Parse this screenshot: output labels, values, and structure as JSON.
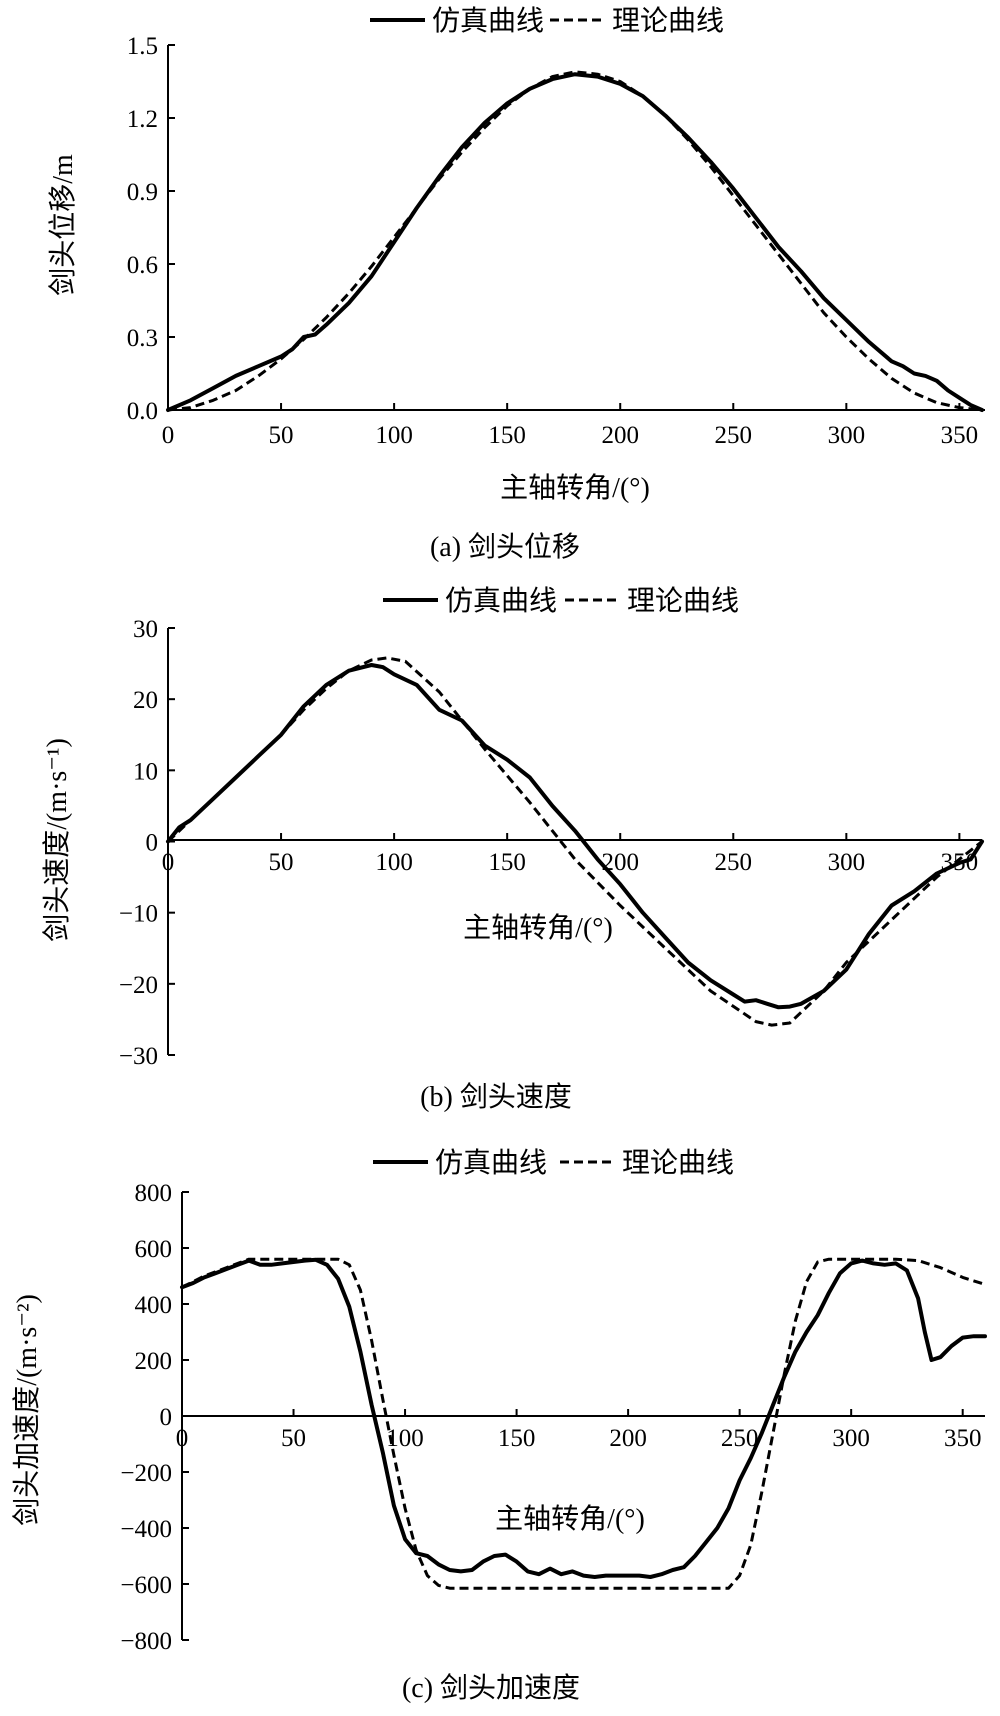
{
  "legend": {
    "sim": "仿真曲线",
    "theory": "理论曲线"
  },
  "chart_data": [
    {
      "type": "line",
      "caption": "(a) 剑头位移",
      "xlabel": "主轴转角/(°)",
      "ylabel": "剑头位移/m",
      "xlim": [
        0,
        360
      ],
      "ylim": [
        0,
        1.5
      ],
      "xticks": [
        0,
        50,
        100,
        150,
        200,
        250,
        300,
        350
      ],
      "xtick_labels": [
        "0",
        "50",
        "100",
        "150",
        "200",
        "250",
        "300",
        "350"
      ],
      "yticks": [
        0,
        0.3,
        0.6,
        0.9,
        1.2,
        1.5
      ],
      "ytick_labels": [
        "0.0",
        "0.3",
        "0.6",
        "0.9",
        "1.2",
        "1.5"
      ],
      "series": [
        {
          "name": "仿真曲线",
          "style": "solid",
          "x": [
            0,
            10,
            20,
            30,
            40,
            50,
            55,
            60,
            65,
            70,
            80,
            90,
            100,
            110,
            120,
            130,
            140,
            150,
            160,
            170,
            180,
            190,
            200,
            210,
            220,
            230,
            240,
            250,
            260,
            270,
            280,
            290,
            300,
            310,
            320,
            325,
            330,
            335,
            340,
            345,
            350,
            355,
            360
          ],
          "y": [
            0,
            0.04,
            0.09,
            0.14,
            0.18,
            0.22,
            0.25,
            0.3,
            0.31,
            0.35,
            0.44,
            0.55,
            0.69,
            0.83,
            0.96,
            1.08,
            1.18,
            1.26,
            1.32,
            1.36,
            1.38,
            1.37,
            1.34,
            1.29,
            1.21,
            1.12,
            1.02,
            0.91,
            0.79,
            0.67,
            0.57,
            0.46,
            0.37,
            0.28,
            0.2,
            0.18,
            0.15,
            0.14,
            0.12,
            0.08,
            0.05,
            0.02,
            0
          ]
        },
        {
          "name": "理论曲线",
          "style": "dashed",
          "x": [
            0,
            10,
            20,
            30,
            40,
            50,
            60,
            70,
            80,
            90,
            100,
            110,
            120,
            130,
            140,
            150,
            160,
            170,
            180,
            190,
            200,
            210,
            220,
            230,
            240,
            250,
            260,
            270,
            280,
            290,
            300,
            310,
            320,
            330,
            340,
            350,
            360
          ],
          "y": [
            0,
            0.01,
            0.04,
            0.08,
            0.14,
            0.21,
            0.29,
            0.38,
            0.48,
            0.59,
            0.71,
            0.83,
            0.95,
            1.06,
            1.16,
            1.25,
            1.32,
            1.37,
            1.39,
            1.38,
            1.35,
            1.29,
            1.21,
            1.11,
            1.0,
            0.88,
            0.76,
            0.64,
            0.52,
            0.4,
            0.3,
            0.21,
            0.13,
            0.07,
            0.03,
            0.01,
            0
          ]
        }
      ]
    },
    {
      "type": "line",
      "caption": "(b) 剑头速度",
      "xlabel": "主轴转角/(°)",
      "ylabel": "剑头速度/(m·s⁻¹)",
      "xlim": [
        0,
        360
      ],
      "ylim": [
        -30,
        30
      ],
      "xticks": [
        0,
        50,
        100,
        150,
        200,
        250,
        300,
        350
      ],
      "xtick_labels": [
        "0",
        "50",
        "100",
        "150",
        "200",
        "250",
        "300",
        "350"
      ],
      "yticks": [
        -30,
        -20,
        -10,
        0,
        10,
        20,
        30
      ],
      "ytick_labels": [
        "−30",
        "−20",
        "−10",
        "0",
        "10",
        "20",
        "30"
      ],
      "series": [
        {
          "name": "仿真曲线",
          "style": "solid",
          "x": [
            0,
            5,
            10,
            20,
            30,
            40,
            50,
            60,
            70,
            80,
            90,
            95,
            100,
            110,
            120,
            130,
            140,
            150,
            160,
            170,
            180,
            190,
            200,
            210,
            220,
            230,
            240,
            250,
            255,
            260,
            265,
            270,
            275,
            280,
            290,
            300,
            310,
            320,
            330,
            340,
            350,
            355,
            360
          ],
          "y": [
            0,
            2,
            3,
            6,
            9,
            12,
            15,
            19,
            22,
            24,
            24.8,
            24.5,
            23.5,
            22,
            18.5,
            17,
            13.5,
            11.5,
            9,
            5,
            1.5,
            -2.5,
            -6,
            -10,
            -13.5,
            -17,
            -19.5,
            -21.5,
            -22.5,
            -22.3,
            -22.8,
            -23.3,
            -23.2,
            -22.8,
            -21,
            -18,
            -13,
            -9,
            -7,
            -4.5,
            -3,
            -2.5,
            0
          ]
        },
        {
          "name": "理论曲线",
          "style": "dashed",
          "x": [
            0,
            10,
            20,
            30,
            40,
            50,
            60,
            70,
            80,
            90,
            97,
            105,
            120,
            140,
            160,
            180,
            200,
            220,
            240,
            260,
            267,
            275,
            290,
            300,
            320,
            340,
            360
          ],
          "y": [
            0,
            3,
            6,
            9,
            12,
            15,
            18.5,
            21.5,
            24,
            25.5,
            25.8,
            25.3,
            21,
            13,
            5.5,
            -2.5,
            -9,
            -15,
            -21,
            -25.3,
            -25.8,
            -25.5,
            -21,
            -17,
            -11,
            -5,
            0
          ]
        }
      ]
    },
    {
      "type": "line",
      "caption": "(c) 剑头加速度",
      "xlabel": "主轴转角/(°)",
      "ylabel": "剑头加速度/(m·s⁻²)",
      "xlim": [
        0,
        360
      ],
      "ylim": [
        -800,
        800
      ],
      "xticks": [
        0,
        50,
        100,
        150,
        200,
        250,
        300,
        350
      ],
      "xtick_labels": [
        "0",
        "50",
        "100",
        "150",
        "200",
        "250",
        "300",
        "350"
      ],
      "yticks": [
        -800,
        -600,
        -400,
        -200,
        0,
        200,
        400,
        600,
        800
      ],
      "ytick_labels": [
        "−800",
        "−600",
        "−400",
        "−200",
        "0",
        "200",
        "400",
        "600",
        "800"
      ],
      "series": [
        {
          "name": "仿真曲线",
          "style": "solid",
          "x": [
            0,
            5,
            10,
            15,
            20,
            25,
            30,
            35,
            40,
            45,
            50,
            55,
            60,
            65,
            70,
            75,
            80,
            85,
            90,
            95,
            100,
            105,
            110,
            115,
            120,
            125,
            130,
            135,
            140,
            145,
            150,
            155,
            160,
            165,
            170,
            175,
            180,
            185,
            190,
            195,
            200,
            205,
            210,
            215,
            220,
            225,
            230,
            235,
            240,
            245,
            250,
            255,
            260,
            265,
            270,
            275,
            280,
            285,
            290,
            295,
            300,
            305,
            310,
            315,
            320,
            325,
            330,
            333,
            336,
            340,
            345,
            350,
            355,
            360
          ],
          "y": [
            460,
            475,
            495,
            510,
            525,
            540,
            555,
            540,
            540,
            545,
            550,
            555,
            558,
            540,
            490,
            390,
            230,
            40,
            -130,
            -320,
            -440,
            -490,
            -500,
            -530,
            -550,
            -555,
            -550,
            -520,
            -500,
            -495,
            -520,
            -555,
            -565,
            -545,
            -565,
            -555,
            -570,
            -575,
            -570,
            -570,
            -570,
            -570,
            -575,
            -565,
            -550,
            -540,
            -500,
            -450,
            -400,
            -330,
            -230,
            -150,
            -60,
            40,
            140,
            230,
            300,
            360,
            440,
            510,
            545,
            555,
            545,
            540,
            545,
            520,
            420,
            300,
            200,
            210,
            250,
            280,
            285,
            285
          ]
        },
        {
          "name": "理论曲线",
          "style": "dashed",
          "x": [
            0,
            10,
            20,
            30,
            60,
            70,
            75,
            80,
            85,
            90,
            95,
            100,
            105,
            110,
            115,
            120,
            245,
            250,
            255,
            260,
            265,
            270,
            275,
            280,
            285,
            290,
            320,
            330,
            340,
            350,
            360
          ],
          "y": [
            460,
            500,
            530,
            560,
            560,
            560,
            540,
            450,
            270,
            60,
            -140,
            -330,
            -480,
            -570,
            -605,
            -615,
            -615,
            -570,
            -460,
            -270,
            -60,
            150,
            340,
            480,
            550,
            560,
            560,
            555,
            530,
            495,
            470
          ]
        }
      ]
    }
  ]
}
